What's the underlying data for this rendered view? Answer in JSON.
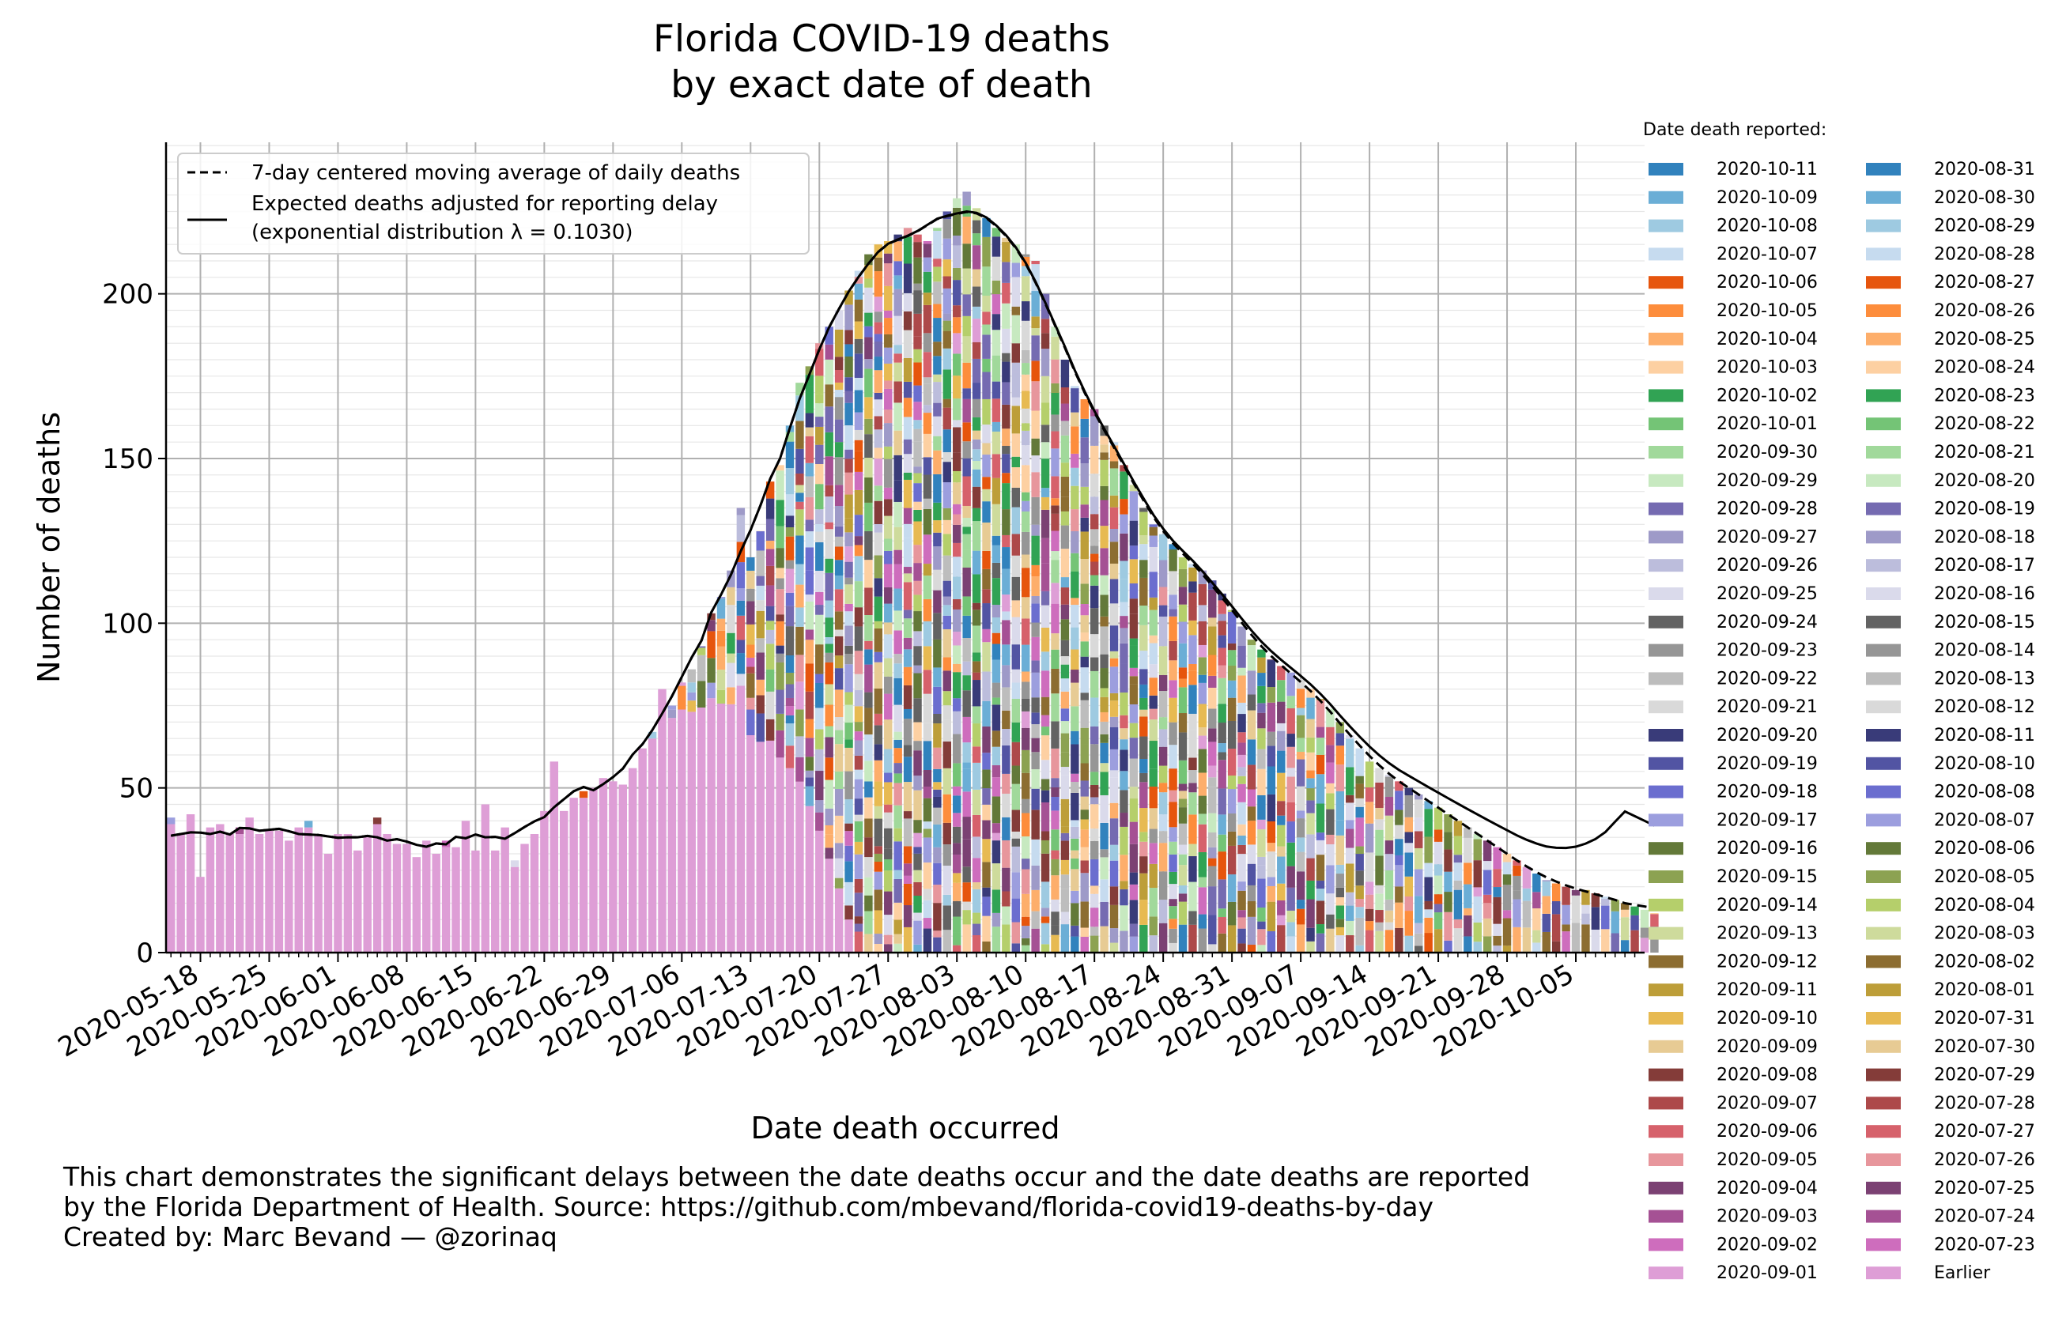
{
  "chart_data": {
    "type": "bar",
    "stacked": true,
    "title": "Florida COVID-19 deaths",
    "subtitle": "by exact date of death",
    "xlabel": "Date death occurred",
    "ylabel": "Number of deaths",
    "ylim": [
      0,
      246
    ],
    "y_ticks": [
      0,
      50,
      100,
      150,
      200
    ],
    "x_ticks": [
      "2020-05-18",
      "2020-05-25",
      "2020-06-01",
      "2020-06-08",
      "2020-06-15",
      "2020-06-22",
      "2020-06-29",
      "2020-07-06",
      "2020-07-13",
      "2020-07-20",
      "2020-07-27",
      "2020-08-03",
      "2020-08-10",
      "2020-08-17",
      "2020-08-24",
      "2020-08-31",
      "2020-09-07",
      "2020-09-14",
      "2020-09-21",
      "2020-09-28",
      "2020-10-05"
    ],
    "x_start": "2020-05-15",
    "x_end": "2020-10-11",
    "grid": true,
    "daily_totals": [
      41,
      36,
      42,
      23,
      38,
      39,
      36,
      38,
      41,
      36,
      37,
      37,
      34,
      38,
      40,
      36,
      30,
      36,
      36,
      31,
      35,
      41,
      36,
      33,
      33,
      29,
      34,
      30,
      34,
      32,
      40,
      31,
      45,
      31,
      38,
      28,
      33,
      36,
      43,
      58,
      43,
      47,
      49,
      50,
      53,
      52,
      51,
      56,
      62,
      67,
      80,
      75,
      82,
      86,
      93,
      103,
      108,
      116,
      135,
      120,
      128,
      143,
      148,
      160,
      173,
      178,
      185,
      190,
      195,
      201,
      207,
      212,
      215,
      216,
      218,
      220,
      218,
      216,
      220,
      225,
      229,
      231,
      226,
      223,
      220,
      217,
      215,
      212,
      210,
      200,
      190,
      180,
      172,
      168,
      165,
      160,
      155,
      148,
      142,
      135,
      130,
      127,
      124,
      120,
      118,
      116,
      113,
      109,
      104,
      99,
      95,
      92,
      89,
      87,
      85,
      83,
      80,
      77,
      74,
      70,
      66,
      62,
      58,
      56,
      54,
      52,
      50,
      48,
      46,
      44,
      42,
      40,
      38,
      36,
      34,
      32,
      30,
      28,
      26,
      24,
      22,
      21,
      20,
      19,
      19,
      18,
      17,
      16,
      15,
      14,
      13,
      12
    ],
    "series": [
      {
        "name": "7-day centered moving average of daily deaths"
      },
      {
        "name": "Expected deaths adjusted for reporting delay"
      }
    ],
    "legend_plot": [
      {
        "label": "7-day centered moving average of daily deaths",
        "style": "dashed"
      },
      {
        "label": "Expected deaths adjusted for reporting delay",
        "label2": "(exponential distribution λ = 0.1030)",
        "style": "solid"
      }
    ],
    "legend_reported_title": "Date death reported:",
    "legend_reported": [
      {
        "label": "2020-10-11",
        "color": "#3182bd"
      },
      {
        "label": "2020-10-09",
        "color": "#6baed6"
      },
      {
        "label": "2020-10-08",
        "color": "#9ecae1"
      },
      {
        "label": "2020-10-07",
        "color": "#c6dbef"
      },
      {
        "label": "2020-10-06",
        "color": "#e6550d"
      },
      {
        "label": "2020-10-05",
        "color": "#fd8d3c"
      },
      {
        "label": "2020-10-04",
        "color": "#fdae6b"
      },
      {
        "label": "2020-10-03",
        "color": "#fdd0a2"
      },
      {
        "label": "2020-10-02",
        "color": "#31a354"
      },
      {
        "label": "2020-10-01",
        "color": "#74c476"
      },
      {
        "label": "2020-09-30",
        "color": "#a1d99b"
      },
      {
        "label": "2020-09-29",
        "color": "#c7e9c0"
      },
      {
        "label": "2020-09-28",
        "color": "#756bb1"
      },
      {
        "label": "2020-09-27",
        "color": "#9e9ac8"
      },
      {
        "label": "2020-09-26",
        "color": "#bcbddc"
      },
      {
        "label": "2020-09-25",
        "color": "#dadaeb"
      },
      {
        "label": "2020-09-24",
        "color": "#636363"
      },
      {
        "label": "2020-09-23",
        "color": "#969696"
      },
      {
        "label": "2020-09-22",
        "color": "#bdbdbd"
      },
      {
        "label": "2020-09-21",
        "color": "#d9d9d9"
      },
      {
        "label": "2020-09-20",
        "color": "#393b79"
      },
      {
        "label": "2020-09-19",
        "color": "#5254a3"
      },
      {
        "label": "2020-09-18",
        "color": "#6b6ecf"
      },
      {
        "label": "2020-09-17",
        "color": "#9c9ede"
      },
      {
        "label": "2020-09-16",
        "color": "#637939"
      },
      {
        "label": "2020-09-15",
        "color": "#8ca252"
      },
      {
        "label": "2020-09-14",
        "color": "#b5cf6b"
      },
      {
        "label": "2020-09-13",
        "color": "#cedb9c"
      },
      {
        "label": "2020-09-12",
        "color": "#8c6d31"
      },
      {
        "label": "2020-09-11",
        "color": "#bd9e39"
      },
      {
        "label": "2020-09-10",
        "color": "#e7ba52"
      },
      {
        "label": "2020-09-09",
        "color": "#e7cb94"
      },
      {
        "label": "2020-09-08",
        "color": "#843c39"
      },
      {
        "label": "2020-09-07",
        "color": "#ad494a"
      },
      {
        "label": "2020-09-06",
        "color": "#d6616b"
      },
      {
        "label": "2020-09-05",
        "color": "#e7969c"
      },
      {
        "label": "2020-09-04",
        "color": "#7b4173"
      },
      {
        "label": "2020-09-03",
        "color": "#a55194"
      },
      {
        "label": "2020-09-02",
        "color": "#ce6dbd"
      },
      {
        "label": "2020-09-01",
        "color": "#de9ed6"
      },
      {
        "label": "2020-08-31",
        "color": "#3182bd"
      },
      {
        "label": "2020-08-30",
        "color": "#6baed6"
      },
      {
        "label": "2020-08-29",
        "color": "#9ecae1"
      },
      {
        "label": "2020-08-28",
        "color": "#c6dbef"
      },
      {
        "label": "2020-08-27",
        "color": "#e6550d"
      },
      {
        "label": "2020-08-26",
        "color": "#fd8d3c"
      },
      {
        "label": "2020-08-25",
        "color": "#fdae6b"
      },
      {
        "label": "2020-08-24",
        "color": "#fdd0a2"
      },
      {
        "label": "2020-08-23",
        "color": "#31a354"
      },
      {
        "label": "2020-08-22",
        "color": "#74c476"
      },
      {
        "label": "2020-08-21",
        "color": "#a1d99b"
      },
      {
        "label": "2020-08-20",
        "color": "#c7e9c0"
      },
      {
        "label": "2020-08-19",
        "color": "#756bb1"
      },
      {
        "label": "2020-08-18",
        "color": "#9e9ac8"
      },
      {
        "label": "2020-08-17",
        "color": "#bcbddc"
      },
      {
        "label": "2020-08-16",
        "color": "#dadaeb"
      },
      {
        "label": "2020-08-15",
        "color": "#636363"
      },
      {
        "label": "2020-08-14",
        "color": "#969696"
      },
      {
        "label": "2020-08-13",
        "color": "#bdbdbd"
      },
      {
        "label": "2020-08-12",
        "color": "#d9d9d9"
      },
      {
        "label": "2020-08-11",
        "color": "#393b79"
      },
      {
        "label": "2020-08-10",
        "color": "#5254a3"
      },
      {
        "label": "2020-08-08",
        "color": "#6b6ecf"
      },
      {
        "label": "2020-08-07",
        "color": "#9c9ede"
      },
      {
        "label": "2020-08-06",
        "color": "#637939"
      },
      {
        "label": "2020-08-05",
        "color": "#8ca252"
      },
      {
        "label": "2020-08-04",
        "color": "#b5cf6b"
      },
      {
        "label": "2020-08-03",
        "color": "#cedb9c"
      },
      {
        "label": "2020-08-02",
        "color": "#8c6d31"
      },
      {
        "label": "2020-08-01",
        "color": "#bd9e39"
      },
      {
        "label": "2020-07-31",
        "color": "#e7ba52"
      },
      {
        "label": "2020-07-30",
        "color": "#e7cb94"
      },
      {
        "label": "2020-07-29",
        "color": "#843c39"
      },
      {
        "label": "2020-07-28",
        "color": "#ad494a"
      },
      {
        "label": "2020-07-27",
        "color": "#d6616b"
      },
      {
        "label": "2020-07-26",
        "color": "#e7969c"
      },
      {
        "label": "2020-07-25",
        "color": "#7b4173"
      },
      {
        "label": "2020-07-24",
        "color": "#a55194"
      },
      {
        "label": "2020-07-23",
        "color": "#ce6dbd"
      },
      {
        "label": "Earlier",
        "color": "#de9ed6"
      }
    ]
  },
  "footnote": {
    "line1": "This chart demonstrates the significant delays between the date deaths occur and the date deaths are reported",
    "line2": "by the Florida Department of Health. Source: https://github.com/mbevand/florida-covid19-deaths-by-day",
    "line3": "Created by: Marc Bevand — @zorinaq"
  }
}
